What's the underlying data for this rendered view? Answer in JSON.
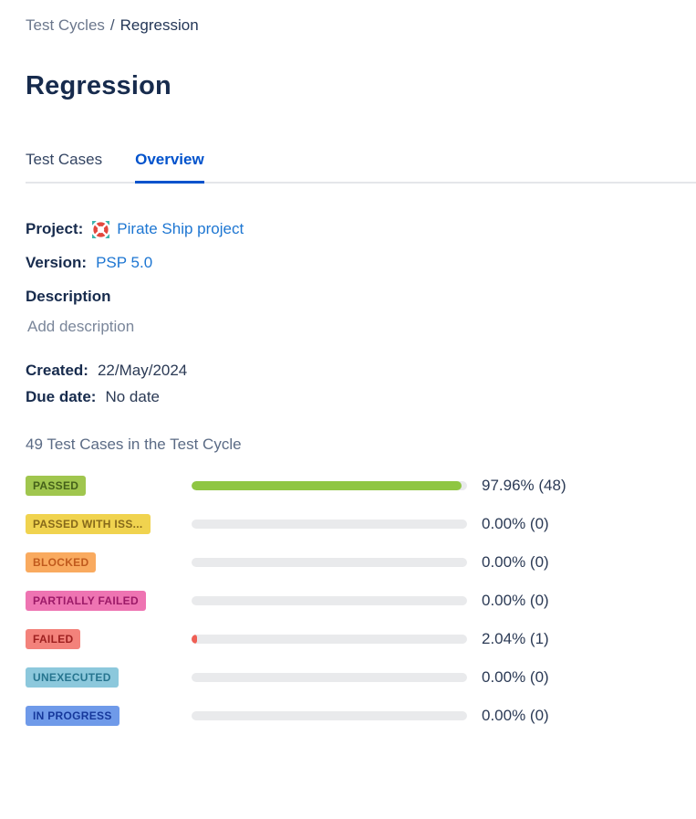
{
  "colors": {
    "tab_active": "#0052cc",
    "link": "#1d76d2",
    "track": "#e9eaec",
    "passed_bar": "#8fc642",
    "failed_bar": "#ef5f55"
  },
  "breadcrumb": {
    "parent": "Test Cycles",
    "separator": "/",
    "current": "Regression"
  },
  "page": {
    "title": "Regression"
  },
  "tabs": [
    {
      "label": "Test Cases",
      "active": false
    },
    {
      "label": "Overview",
      "active": true
    }
  ],
  "details": {
    "project_label": "Project:",
    "project_value": "Pirate Ship project",
    "project_icon": "life-buoy-icon",
    "version_label": "Version:",
    "version_value": "PSP 5.0",
    "description_label": "Description",
    "description_placeholder": "Add description",
    "created_label": "Created:",
    "created_value": "22/May/2024",
    "due_label": "Due date:",
    "due_value": "No date"
  },
  "summary": {
    "heading": "49 Test Cases in the Test Cycle",
    "statuses": [
      {
        "label": "PASSED",
        "percent": 97.96,
        "display": "97.96% (48)",
        "badge_bg": "#a0c64e",
        "badge_text": "#45611a",
        "bar_color": "#8fc642"
      },
      {
        "label": "PASSED WITH ISS...",
        "percent": 0,
        "display": "0.00% (0)",
        "badge_bg": "#f0d34f",
        "badge_text": "#86691a",
        "bar_color": null
      },
      {
        "label": "BLOCKED",
        "percent": 0,
        "display": "0.00% (0)",
        "badge_bg": "#f9aa5f",
        "badge_text": "#c05a1d",
        "bar_color": null
      },
      {
        "label": "PARTIALLY FAILED",
        "percent": 0,
        "display": "0.00% (0)",
        "badge_bg": "#ee74b2",
        "badge_text": "#9c1a68",
        "bar_color": null
      },
      {
        "label": "FAILED",
        "percent": 2.04,
        "display": "2.04% (1)",
        "badge_bg": "#f3827b",
        "badge_text": "#9e2020",
        "bar_color": "#ef5f55"
      },
      {
        "label": "UNEXECUTED",
        "percent": 0,
        "display": "0.00% (0)",
        "badge_bg": "#8cc8dc",
        "badge_text": "#26758f",
        "bar_color": null
      },
      {
        "label": "IN PROGRESS",
        "percent": 0,
        "display": "0.00% (0)",
        "badge_bg": "#6f9ae9",
        "badge_text": "#16389b",
        "bar_color": null
      }
    ]
  }
}
